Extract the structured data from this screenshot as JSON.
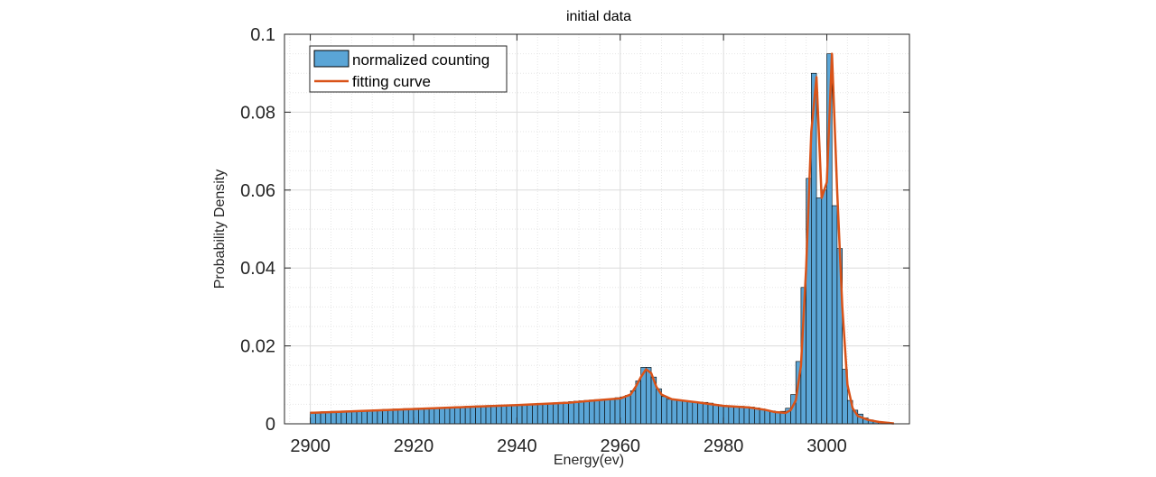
{
  "chart_data": {
    "type": "bar",
    "title": "initial data",
    "xlabel": "Energy(ev)",
    "ylabel": "Probability Density",
    "xlim": [
      2895,
      3016
    ],
    "ylim": [
      0,
      0.1
    ],
    "xticks": [
      2900,
      2920,
      2940,
      2960,
      2980,
      3000
    ],
    "xtick_labels": [
      "2900",
      "2920",
      "2940",
      "2960",
      "2980",
      "3000"
    ],
    "yticks": [
      0,
      0.02,
      0.04,
      0.06,
      0.08,
      0.1
    ],
    "ytick_labels": [
      "0",
      "0.02",
      "0.04",
      "0.06",
      "0.08",
      "0.1"
    ],
    "grid": true,
    "minor_grid": true,
    "legend_position": "top-left",
    "bin_width": 1,
    "series": [
      {
        "name": "normalized counting",
        "kind": "histogram",
        "color": "#5aa5d6",
        "edge_color": "#000000",
        "x": [
          2900.5,
          2901.5,
          2902.5,
          2903.5,
          2904.5,
          2905.5,
          2906.5,
          2907.5,
          2908.5,
          2909.5,
          2910.5,
          2911.5,
          2912.5,
          2913.5,
          2914.5,
          2915.5,
          2916.5,
          2917.5,
          2918.5,
          2919.5,
          2920.5,
          2921.5,
          2922.5,
          2923.5,
          2924.5,
          2925.5,
          2926.5,
          2927.5,
          2928.5,
          2929.5,
          2930.5,
          2931.5,
          2932.5,
          2933.5,
          2934.5,
          2935.5,
          2936.5,
          2937.5,
          2938.5,
          2939.5,
          2940.5,
          2941.5,
          2942.5,
          2943.5,
          2944.5,
          2945.5,
          2946.5,
          2947.5,
          2948.5,
          2949.5,
          2950.5,
          2951.5,
          2952.5,
          2953.5,
          2954.5,
          2955.5,
          2956.5,
          2957.5,
          2958.5,
          2959.5,
          2960.5,
          2961.5,
          2962.5,
          2963.5,
          2964.5,
          2965.5,
          2966.5,
          2967.5,
          2968.5,
          2969.5,
          2970.5,
          2971.5,
          2972.5,
          2973.5,
          2974.5,
          2975.5,
          2976.5,
          2977.5,
          2978.5,
          2979.5,
          2980.5,
          2981.5,
          2982.5,
          2983.5,
          2984.5,
          2985.5,
          2986.5,
          2987.5,
          2988.5,
          2989.5,
          2990.5,
          2991.5,
          2992.5,
          2993.5,
          2994.5,
          2995.5,
          2996.5,
          2997.5,
          2998.5,
          2999.5,
          3000.5,
          3001.5,
          3002.5,
          3003.5,
          3004.5,
          3005.5,
          3006.5,
          3007.5,
          3008.5,
          3009.5,
          3010.5,
          3011.5
        ],
        "values": [
          0.003,
          0.003,
          0.0031,
          0.0031,
          0.0032,
          0.0032,
          0.0033,
          0.0033,
          0.0034,
          0.0034,
          0.0035,
          0.0035,
          0.0036,
          0.0036,
          0.0037,
          0.0037,
          0.0038,
          0.0038,
          0.0039,
          0.0039,
          0.004,
          0.004,
          0.0041,
          0.0041,
          0.0042,
          0.0042,
          0.0043,
          0.0043,
          0.0044,
          0.0044,
          0.0045,
          0.0045,
          0.0046,
          0.0046,
          0.0047,
          0.0047,
          0.0048,
          0.0048,
          0.0048,
          0.0049,
          0.0049,
          0.005,
          0.005,
          0.0051,
          0.0051,
          0.0052,
          0.0053,
          0.0054,
          0.0055,
          0.0056,
          0.0057,
          0.0058,
          0.0059,
          0.006,
          0.0061,
          0.0062,
          0.0063,
          0.0064,
          0.0065,
          0.0067,
          0.0069,
          0.0073,
          0.0085,
          0.011,
          0.0145,
          0.0145,
          0.012,
          0.009,
          0.007,
          0.0063,
          0.0061,
          0.006,
          0.0059,
          0.0058,
          0.0057,
          0.0056,
          0.0055,
          0.0053,
          0.005,
          0.0047,
          0.0046,
          0.0045,
          0.0045,
          0.0045,
          0.0044,
          0.0043,
          0.0041,
          0.0038,
          0.0035,
          0.0033,
          0.0031,
          0.0032,
          0.004,
          0.0075,
          0.016,
          0.035,
          0.063,
          0.09,
          0.058,
          0.06,
          0.095,
          0.056,
          0.045,
          0.014,
          0.006,
          0.0035,
          0.0025,
          0.0015,
          0.001,
          0.0007,
          0.0004,
          0.0002
        ]
      },
      {
        "name": "fitting curve",
        "kind": "line",
        "color": "#d95319",
        "x": [
          2900,
          2910,
          2920,
          2930,
          2940,
          2950,
          2955,
          2958,
          2960,
          2962,
          2963,
          2964,
          2965,
          2966,
          2967,
          2968,
          2970,
          2975,
          2980,
          2985,
          2988,
          2990,
          2992,
          2993,
          2994,
          2995,
          2996,
          2997,
          2998,
          2999,
          3000,
          3001,
          3002,
          3003,
          3004,
          3005,
          3006,
          3008,
          3010,
          3013
        ],
        "values": [
          0.0028,
          0.0033,
          0.0038,
          0.0043,
          0.0048,
          0.0054,
          0.006,
          0.0063,
          0.0065,
          0.0075,
          0.0095,
          0.012,
          0.014,
          0.013,
          0.0095,
          0.0075,
          0.0063,
          0.0055,
          0.0046,
          0.0042,
          0.0036,
          0.003,
          0.0028,
          0.0035,
          0.006,
          0.015,
          0.04,
          0.075,
          0.089,
          0.058,
          0.062,
          0.095,
          0.06,
          0.03,
          0.01,
          0.004,
          0.002,
          0.001,
          0.0005,
          0.0001
        ]
      }
    ]
  }
}
